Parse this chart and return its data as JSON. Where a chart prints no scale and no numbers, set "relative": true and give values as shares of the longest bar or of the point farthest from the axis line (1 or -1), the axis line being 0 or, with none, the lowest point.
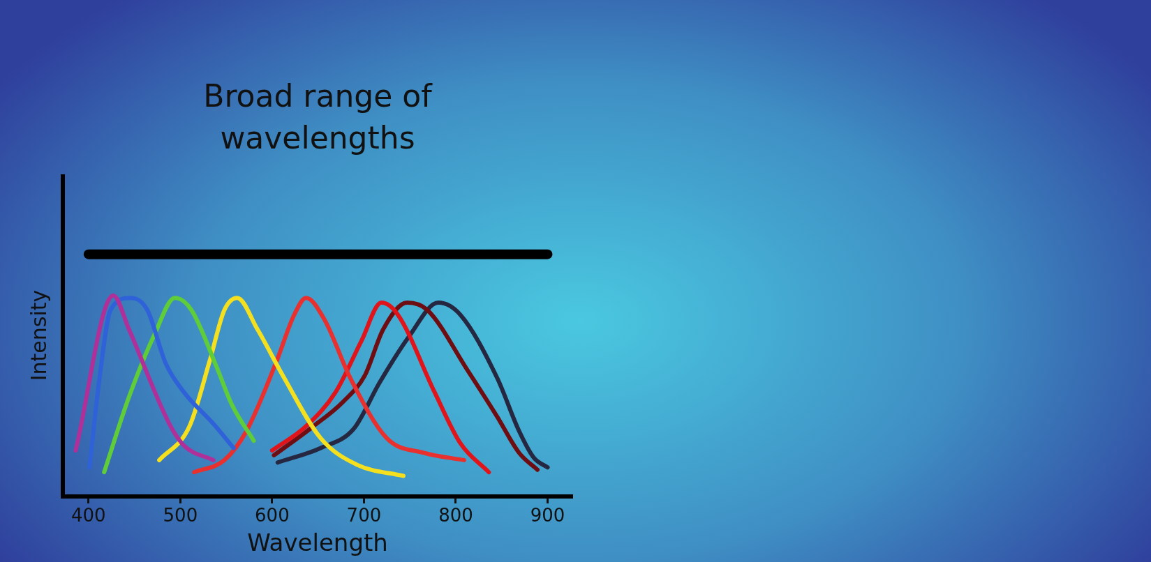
{
  "chart_data": {
    "type": "line",
    "title": "Broad range of wavelengths",
    "xlabel": "Wavelength",
    "ylabel": "Intensity",
    "relative": true,
    "xlim": [
      372,
      927
    ],
    "xticks": [
      400,
      500,
      600,
      700,
      800,
      900
    ],
    "grid": false,
    "legend": false,
    "marker": "none",
    "line_style": "solid",
    "series": [
      {
        "color": "#000000",
        "x": [
          400,
          900
        ],
        "values": [
          1.0,
          1.0
        ]
      },
      {
        "color": "#b0309a",
        "x": [
          386,
          427,
          444,
          488,
          504,
          536
        ],
        "values": [
          0.19,
          0.83,
          0.69,
          0.3,
          0.21,
          0.15
        ]
      },
      {
        "color": "#2f62d8",
        "x": [
          401,
          412,
          424,
          446,
          464,
          484,
          504,
          536,
          558
        ],
        "values": [
          0.12,
          0.49,
          0.77,
          0.82,
          0.77,
          0.55,
          0.43,
          0.3,
          0.2
        ]
      },
      {
        "color": "#5fcc3a",
        "x": [
          417,
          444,
          472,
          494,
          512,
          540,
          556,
          580
        ],
        "values": [
          0.1,
          0.41,
          0.67,
          0.82,
          0.77,
          0.53,
          0.38,
          0.23
        ]
      },
      {
        "color": "#f4e01e",
        "x": [
          477,
          510,
          532,
          548,
          562,
          584,
          613,
          653,
          693,
          743
        ],
        "values": [
          0.15,
          0.29,
          0.56,
          0.77,
          0.82,
          0.69,
          0.49,
          0.24,
          0.13,
          0.085
        ]
      },
      {
        "color": "#e8302f",
        "x": [
          515,
          548,
          572,
          604,
          624,
          637,
          657,
          685,
          725,
          765,
          809
        ],
        "values": [
          0.1,
          0.15,
          0.27,
          0.55,
          0.75,
          0.82,
          0.73,
          0.49,
          0.24,
          0.18,
          0.15
        ]
      },
      {
        "color": "#e0151b",
        "x": [
          600,
          637,
          669,
          697,
          719,
          737,
          777,
          805,
          836
        ],
        "values": [
          0.19,
          0.29,
          0.43,
          0.64,
          0.8,
          0.75,
          0.43,
          0.22,
          0.1
        ]
      },
      {
        "color": "#6e0e12",
        "x": [
          602,
          645,
          677,
          701,
          721,
          747,
          769,
          813,
          845,
          869,
          889
        ],
        "values": [
          0.17,
          0.29,
          0.39,
          0.5,
          0.69,
          0.8,
          0.77,
          0.52,
          0.33,
          0.18,
          0.11
        ]
      },
      {
        "color": "#252840",
        "x": [
          606,
          653,
          689,
          717,
          749,
          781,
          805,
          845,
          869,
          885,
          900
        ],
        "values": [
          0.14,
          0.2,
          0.28,
          0.47,
          0.66,
          0.8,
          0.75,
          0.49,
          0.27,
          0.16,
          0.12
        ]
      }
    ]
  }
}
